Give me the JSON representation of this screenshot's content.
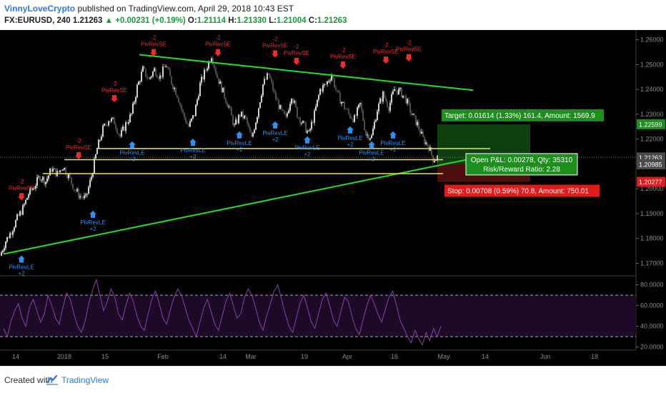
{
  "header": {
    "author": "VinnyLoveCrypto",
    "published_text": " published on TradingView.com, April 29, 2018 10:43 EST",
    "symbol": "FX:EURUSD, 240",
    "last": "1.21263",
    "change": "▲ +0.00231 (+0.19%)",
    "o_label": "O:",
    "o_val": "1.21114",
    "h_label": "H:",
    "h_val": "1.21330",
    "l_label": "L:",
    "l_val": "1.21004",
    "c_label": "C:",
    "c_val": "1.21263"
  },
  "footer": {
    "created_with": "Created with",
    "brand": "TradingView"
  },
  "colors": {
    "background": "#000000",
    "up_candle": "#e6e6e6",
    "down_candle": "#555555",
    "trendline": "#22dd22",
    "support": "#e8e83a",
    "rsi": "#8a3fb0",
    "rsi_band": "#1d0a26",
    "long_signal": "#2f8ff0",
    "short_signal": "#ee2b2b",
    "target": "#1e8f1e",
    "stop": "#e01b1b"
  },
  "chart_data": {
    "type": "candlestick",
    "symbol": "FX:EURUSD",
    "timeframe": "240",
    "ylim": [
      1.1655,
      1.2625
    ],
    "price_ticks": [
      "1.26000",
      "1.25000",
      "1.24000",
      "1.23000",
      "1.22000",
      "1.21000",
      "1.20000",
      "1.19000",
      "1.18000",
      "1.17000"
    ],
    "x_ticks": [
      "14",
      "2018",
      "15",
      "Feb",
      "14",
      "Mar",
      "19",
      "Apr",
      "16",
      "May",
      "14",
      "Jun",
      "18"
    ],
    "price_labels": [
      {
        "text": "1.22599",
        "value": 1.22599,
        "color": "#1e8f1e"
      },
      {
        "text": "1.21263",
        "value": 1.21263,
        "color": "#4a4a4a"
      },
      {
        "text": "1.20985",
        "value": 1.20985,
        "color": "#4a4a4a"
      },
      {
        "text": "1.20277",
        "value": 1.20277,
        "color": "#e01b1b"
      }
    ],
    "close_path": [
      [
        0,
        1.173
      ],
      [
        8,
        1.179
      ],
      [
        16,
        1.183
      ],
      [
        24,
        1.188
      ],
      [
        32,
        1.192
      ],
      [
        40,
        1.198
      ],
      [
        48,
        1.201
      ],
      [
        56,
        1.205
      ],
      [
        64,
        1.203
      ],
      [
        72,
        1.208
      ],
      [
        80,
        1.206
      ],
      [
        88,
        1.209
      ],
      [
        96,
        1.205
      ],
      [
        104,
        1.2
      ],
      [
        112,
        1.197
      ],
      [
        120,
        1.196
      ],
      [
        128,
        1.205
      ],
      [
        136,
        1.216
      ],
      [
        144,
        1.224
      ],
      [
        152,
        1.228
      ],
      [
        160,
        1.227
      ],
      [
        168,
        1.221
      ],
      [
        176,
        1.226
      ],
      [
        184,
        1.23
      ],
      [
        192,
        1.241
      ],
      [
        200,
        1.248
      ],
      [
        208,
        1.244
      ],
      [
        216,
        1.248
      ],
      [
        224,
        1.245
      ],
      [
        232,
        1.25
      ],
      [
        240,
        1.243
      ],
      [
        248,
        1.238
      ],
      [
        256,
        1.23
      ],
      [
        264,
        1.225
      ],
      [
        272,
        1.23
      ],
      [
        280,
        1.242
      ],
      [
        288,
        1.248
      ],
      [
        296,
        1.254
      ],
      [
        304,
        1.245
      ],
      [
        312,
        1.239
      ],
      [
        320,
        1.233
      ],
      [
        328,
        1.225
      ],
      [
        336,
        1.23
      ],
      [
        344,
        1.228
      ],
      [
        352,
        1.22
      ],
      [
        360,
        1.23
      ],
      [
        368,
        1.242
      ],
      [
        376,
        1.246
      ],
      [
        384,
        1.238
      ],
      [
        392,
        1.232
      ],
      [
        400,
        1.228
      ],
      [
        408,
        1.238
      ],
      [
        416,
        1.23
      ],
      [
        424,
        1.226
      ],
      [
        432,
        1.222
      ],
      [
        440,
        1.23
      ],
      [
        448,
        1.24
      ],
      [
        456,
        1.242
      ],
      [
        464,
        1.246
      ],
      [
        472,
        1.238
      ],
      [
        480,
        1.234
      ],
      [
        488,
        1.23
      ],
      [
        496,
        1.228
      ],
      [
        504,
        1.234
      ],
      [
        512,
        1.222
      ],
      [
        520,
        1.221
      ],
      [
        528,
        1.232
      ],
      [
        536,
        1.238
      ],
      [
        544,
        1.233
      ],
      [
        552,
        1.24
      ],
      [
        560,
        1.239
      ],
      [
        568,
        1.236
      ],
      [
        576,
        1.23
      ],
      [
        584,
        1.226
      ],
      [
        592,
        1.22
      ],
      [
        600,
        1.217
      ],
      [
        606,
        1.212
      ],
      [
        612,
        1.2126
      ]
    ],
    "trendlines": [
      {
        "x1": 195,
        "y1": 1.254,
        "x2": 662,
        "y2": 1.2397,
        "color": "#22dd22"
      },
      {
        "x1": 5,
        "y1": 1.1737,
        "x2": 658,
        "y2": 1.212,
        "color": "#22dd22"
      }
    ],
    "horizontal_lines": [
      {
        "x1": 135,
        "x2": 686,
        "value": 1.2162
      },
      {
        "x1": 90,
        "x2": 620,
        "value": 1.2117
      },
      {
        "x1": 60,
        "x2": 620,
        "value": 1.2061
      }
    ],
    "position": {
      "entry": 1.20985,
      "target": 1.22599,
      "stop": 1.20277,
      "x_start": 612,
      "x_end": 742,
      "target_text": "Target: 0.01614 (1.33%) 161.4, Amount: 1569.9",
      "open_pl_text": "Open P&L: 0.00278, Qty: 35310",
      "rr_text": "Risk/Reward Ratio: 2.28",
      "stop_text": "Stop: 0.00708 (0.59%) 70.8, Amount: 750.01"
    },
    "signals": [
      {
        "text": "PivRevSE",
        "sub": "-2",
        "x": 30,
        "value": 1.1945,
        "side": "short"
      },
      {
        "text": "PivRevSE",
        "sub": "-2",
        "x": 110,
        "value": 1.211,
        "side": "short"
      },
      {
        "text": "PivRevSE",
        "sub": "-2",
        "x": 160,
        "value": 1.234,
        "side": "short"
      },
      {
        "text": "PivRevSE",
        "sub": "-2",
        "x": 215,
        "value": 1.2525,
        "side": "short"
      },
      {
        "text": "PivRevSE",
        "sub": "-2",
        "x": 305,
        "value": 1.2525,
        "side": "short"
      },
      {
        "text": "PivRevSE",
        "sub": "-2",
        "x": 385,
        "value": 1.252,
        "side": "short"
      },
      {
        "text": "PivRevSE",
        "sub": "-2",
        "x": 415,
        "value": 1.249,
        "side": "short"
      },
      {
        "text": "PivRevSE",
        "sub": "-2",
        "x": 480,
        "value": 1.2475,
        "side": "short"
      },
      {
        "text": "PivRevSE",
        "sub": "-2",
        "x": 540,
        "value": 1.2495,
        "side": "short"
      },
      {
        "text": "PivRevSE",
        "sub": "-2",
        "x": 572,
        "value": 1.2505,
        "side": "short"
      },
      {
        "text": "PivRevLE",
        "sub": "+2",
        "x": 130,
        "value": 1.192,
        "side": "long"
      },
      {
        "text": "PivRevLE",
        "sub": "+2",
        "x": 30,
        "value": 1.174,
        "side": "long"
      },
      {
        "text": "PivRevLE",
        "sub": "+2",
        "x": 185,
        "value": 1.22,
        "side": "long"
      },
      {
        "text": "PivRevLE",
        "sub": "+2",
        "x": 270,
        "value": 1.221,
        "side": "long"
      },
      {
        "text": "PivRevLE",
        "sub": "+2",
        "x": 335,
        "value": 1.224,
        "side": "long"
      },
      {
        "text": "PivRevLE",
        "sub": "+2",
        "x": 385,
        "value": 1.228,
        "side": "long"
      },
      {
        "text": "PivRevLE",
        "sub": "+2",
        "x": 430,
        "value": 1.222,
        "side": "long"
      },
      {
        "text": "PivRevLE",
        "sub": "+2",
        "x": 490,
        "value": 1.226,
        "side": "long"
      },
      {
        "text": "PivRevLE",
        "sub": "+2",
        "x": 520,
        "value": 1.22,
        "side": "long"
      },
      {
        "text": "PivRevLE",
        "sub": "+2",
        "x": 550,
        "value": 1.224,
        "side": "long"
      }
    ],
    "rsi": {
      "ylim": [
        17,
        88
      ],
      "ticks": [
        "80.0000",
        "60.0000",
        "40.0000",
        "20.0000"
      ],
      "upper_band": 70,
      "lower_band": 30,
      "values": [
        38,
        30,
        45,
        55,
        62,
        48,
        40,
        58,
        66,
        55,
        44,
        52,
        70,
        60,
        48,
        42,
        58,
        72,
        66,
        52,
        40,
        34,
        45,
        62,
        75,
        85,
        70,
        55,
        64,
        76,
        68,
        52,
        46,
        60,
        72,
        64,
        50,
        40,
        36,
        52,
        66,
        74,
        62,
        48,
        42,
        56,
        68,
        76,
        70,
        58,
        46,
        38,
        30,
        44,
        58,
        66,
        54,
        42,
        36,
        50,
        64,
        72,
        60,
        48,
        52,
        68,
        76,
        70,
        58,
        44,
        36,
        50,
        62,
        74,
        80,
        66,
        52,
        40,
        34,
        48,
        62,
        70,
        58,
        44,
        38,
        52,
        66,
        72,
        60,
        46,
        40,
        54,
        68,
        64,
        50,
        38,
        32,
        46,
        60,
        70,
        62,
        52,
        44,
        56,
        68,
        74,
        60,
        46,
        38,
        30,
        24,
        36,
        28,
        22,
        34,
        26,
        38,
        30,
        40
      ]
    }
  }
}
